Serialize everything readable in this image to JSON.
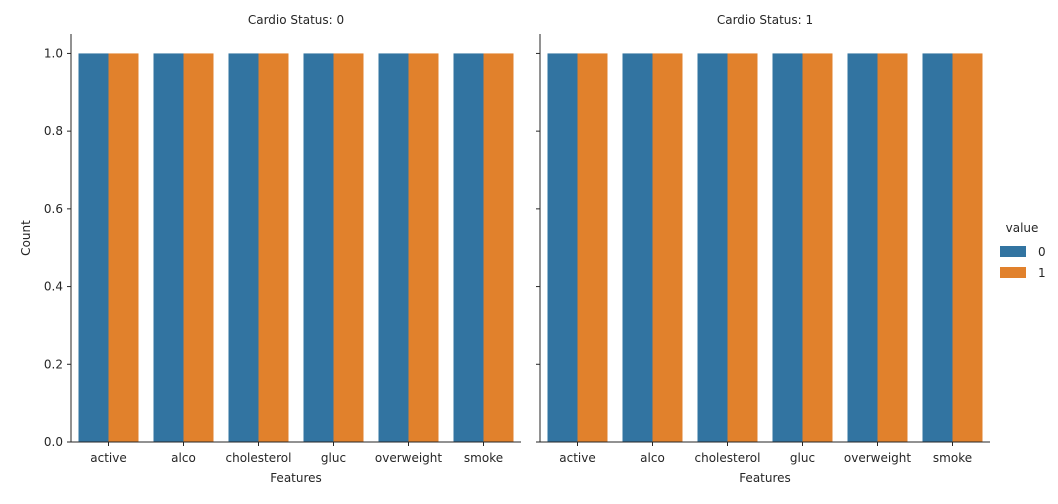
{
  "chart_data": {
    "type": "bar",
    "panels": [
      {
        "title": "Cardio Status: 0",
        "categories": [
          "active",
          "alco",
          "cholesterol",
          "gluc",
          "overweight",
          "smoke"
        ],
        "series": [
          {
            "name": "0",
            "values": [
              1,
              1,
              1,
              1,
              1,
              1
            ]
          },
          {
            "name": "1",
            "values": [
              1,
              1,
              1,
              1,
              1,
              1
            ]
          }
        ]
      },
      {
        "title": "Cardio Status: 1",
        "categories": [
          "active",
          "alco",
          "cholesterol",
          "gluc",
          "overweight",
          "smoke"
        ],
        "series": [
          {
            "name": "0",
            "values": [
              1,
              1,
              1,
              1,
              1,
              1
            ]
          },
          {
            "name": "1",
            "values": [
              1,
              1,
              1,
              1,
              1,
              1
            ]
          }
        ]
      }
    ],
    "xlabel": "Features",
    "ylabel": "Count",
    "ylim": [
      0,
      1.05
    ],
    "yticks": [
      "0.0",
      "0.2",
      "0.4",
      "0.6",
      "0.8",
      "1.0"
    ],
    "ytick_values": [
      0,
      0.2,
      0.4,
      0.6,
      0.8,
      1.0
    ],
    "legend": {
      "title": "value",
      "placement": "right"
    },
    "grid": false,
    "colors": {
      "0": "#3274a1",
      "1": "#e1812c"
    }
  }
}
